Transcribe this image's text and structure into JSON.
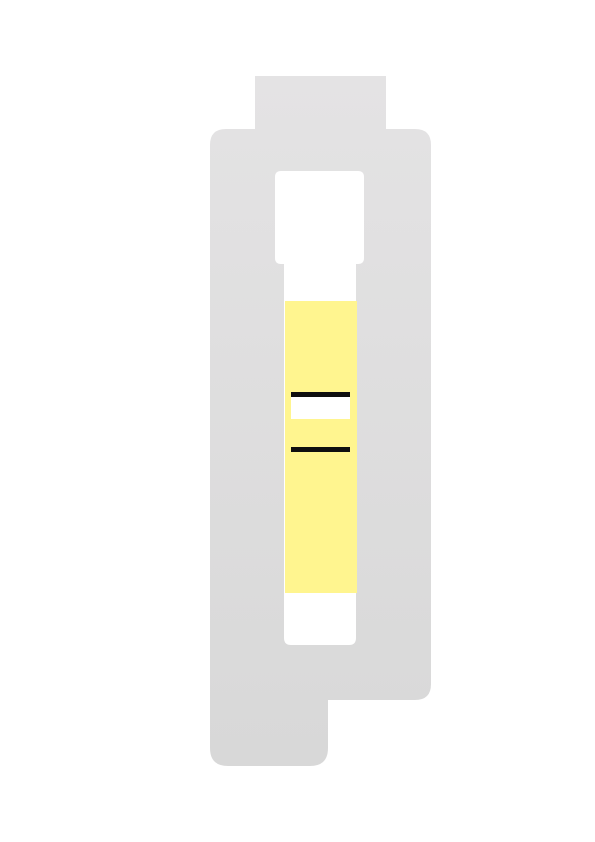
{
  "colors": {
    "background": "#ffffff",
    "holder_top": "#e4e3e4",
    "holder_bottom": "#d8d8d8",
    "window": "#ffffff",
    "reagent_zone": "#fff58f",
    "line": "#0f0f0f"
  },
  "icons": {
    "main": "test-strip-holder-icon",
    "strip": "test-strip-icon",
    "lines": "result-lines-icon"
  },
  "result": {
    "visible_line_count": 2
  }
}
